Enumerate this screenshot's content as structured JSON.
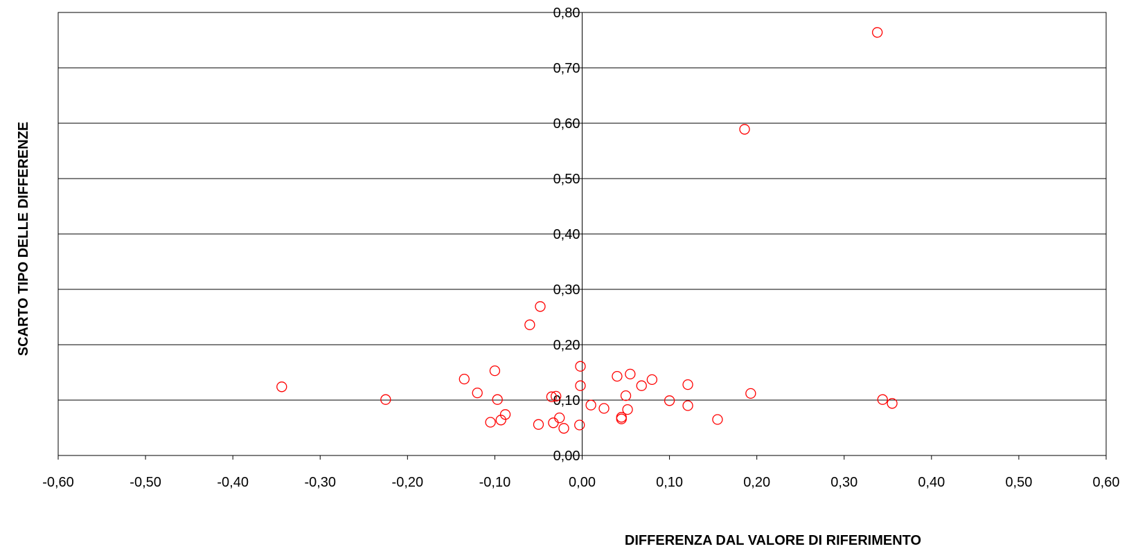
{
  "chart_data": {
    "type": "scatter",
    "xlabel": "DIFFERENZA DAL VALORE DI RIFERIMENTO",
    "ylabel": "SCARTO TIPO  DELLE DIFFERENZE",
    "xlim": [
      -0.6,
      0.6
    ],
    "ylim": [
      0.0,
      0.8
    ],
    "x_ticks": [
      -0.6,
      -0.5,
      -0.4,
      -0.3,
      -0.2,
      -0.1,
      0.0,
      0.1,
      0.2,
      0.3,
      0.4,
      0.5,
      0.6
    ],
    "x_tick_labels": [
      "-0,60",
      "-0,50",
      "-0,40",
      "-0,30",
      "-0,20",
      "-0,10",
      "0,00",
      "0,10",
      "0,20",
      "0,30",
      "0,40",
      "0,50",
      "0,60"
    ],
    "y_ticks": [
      0.0,
      0.1,
      0.2,
      0.3,
      0.4,
      0.5,
      0.6,
      0.7,
      0.8
    ],
    "y_tick_labels": [
      "0,00",
      "0,10",
      "0,20",
      "0,30",
      "0,40",
      "0,50",
      "0,60",
      "0,70",
      "0,80"
    ],
    "grid": "horizontal",
    "legend": "none",
    "marker": "open-circle",
    "marker_color": "#ff0000",
    "points": [
      {
        "x": -0.344,
        "y": 0.124
      },
      {
        "x": -0.225,
        "y": 0.101
      },
      {
        "x": -0.135,
        "y": 0.138
      },
      {
        "x": -0.12,
        "y": 0.113
      },
      {
        "x": -0.1,
        "y": 0.153
      },
      {
        "x": -0.097,
        "y": 0.101
      },
      {
        "x": -0.093,
        "y": 0.064
      },
      {
        "x": -0.105,
        "y": 0.06
      },
      {
        "x": -0.088,
        "y": 0.074
      },
      {
        "x": -0.06,
        "y": 0.236
      },
      {
        "x": -0.048,
        "y": 0.269
      },
      {
        "x": -0.05,
        "y": 0.056
      },
      {
        "x": -0.035,
        "y": 0.106
      },
      {
        "x": -0.03,
        "y": 0.107
      },
      {
        "x": -0.033,
        "y": 0.059
      },
      {
        "x": -0.026,
        "y": 0.068
      },
      {
        "x": -0.021,
        "y": 0.049
      },
      {
        "x": -0.002,
        "y": 0.161
      },
      {
        "x": -0.002,
        "y": 0.126
      },
      {
        "x": -0.003,
        "y": 0.055
      },
      {
        "x": 0.01,
        "y": 0.091
      },
      {
        "x": 0.025,
        "y": 0.085
      },
      {
        "x": 0.04,
        "y": 0.143
      },
      {
        "x": 0.055,
        "y": 0.147
      },
      {
        "x": 0.05,
        "y": 0.108
      },
      {
        "x": 0.052,
        "y": 0.083
      },
      {
        "x": 0.045,
        "y": 0.069
      },
      {
        "x": 0.045,
        "y": 0.066
      },
      {
        "x": 0.068,
        "y": 0.126
      },
      {
        "x": 0.08,
        "y": 0.137
      },
      {
        "x": 0.1,
        "y": 0.099
      },
      {
        "x": 0.121,
        "y": 0.128
      },
      {
        "x": 0.121,
        "y": 0.09
      },
      {
        "x": 0.155,
        "y": 0.065
      },
      {
        "x": 0.186,
        "y": 0.589
      },
      {
        "x": 0.193,
        "y": 0.112
      },
      {
        "x": 0.338,
        "y": 0.764
      },
      {
        "x": 0.344,
        "y": 0.101
      },
      {
        "x": 0.355,
        "y": 0.094
      }
    ]
  }
}
